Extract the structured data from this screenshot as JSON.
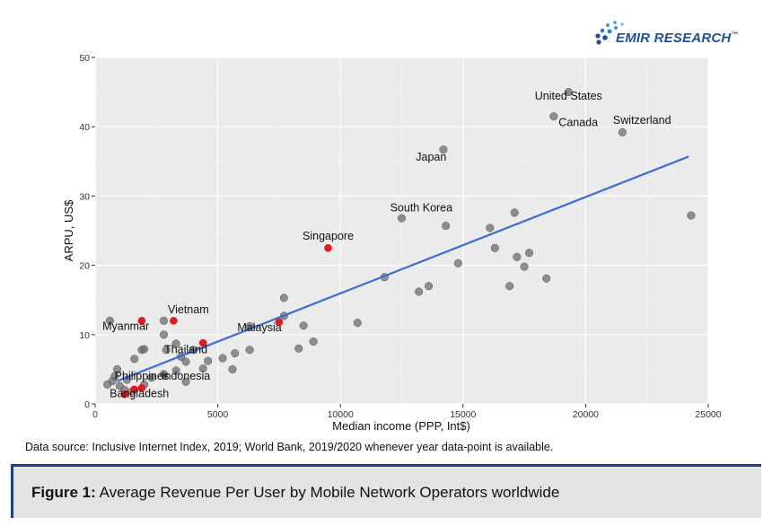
{
  "brand": {
    "name": "EMIR RESEARCH",
    "tm": "™",
    "accent": "#1f4e96",
    "icon": "dots-logo-icon"
  },
  "source_note": "Data source: Inclusive Internet Index, 2019; World Bank, 2019/2020 whenever year data-point is available.",
  "caption": {
    "prefix": "Figure 1:",
    "text": " Average Revenue Per User by Mobile Network Operators worldwide"
  },
  "colors": {
    "panel": "#ebebeb",
    "grid": "#ffffff",
    "point": "#6e6e6e",
    "highlight": "#e41a1c",
    "fit": "#3a6bd6",
    "caption_rule": "#1f3f8c"
  },
  "chart_data": {
    "type": "scatter",
    "title": "",
    "xlabel": "Median income (PPP, Int$)",
    "ylabel": "ARPU, US$",
    "xlim": [
      0,
      25000
    ],
    "ylim": [
      0,
      50
    ],
    "xticks": [
      0,
      5000,
      10000,
      15000,
      20000,
      25000
    ],
    "xtick_labels": [
      "0",
      "5000",
      "10000",
      "15000",
      "20000",
      "25000"
    ],
    "yticks": [
      0,
      10,
      20,
      30,
      40,
      50
    ],
    "ytick_labels": [
      "0",
      "10",
      "20",
      "30",
      "40",
      "50"
    ],
    "grid": true,
    "legend": "none",
    "trend_line": {
      "from": [
        900,
        3.3
      ],
      "to": [
        24200,
        35.7
      ]
    },
    "series": [
      {
        "points": [
          [
            19300,
            45
          ],
          [
            18700,
            41.5
          ],
          [
            21500,
            39.2
          ],
          [
            14200,
            36.7
          ],
          [
            12500,
            26.8
          ],
          [
            14300,
            25.7
          ],
          [
            17100,
            27.6
          ],
          [
            16100,
            25.4
          ],
          [
            24300,
            27.2
          ],
          [
            16300,
            22.5
          ],
          [
            17700,
            21.8
          ],
          [
            17200,
            21.2
          ],
          [
            17500,
            19.8
          ],
          [
            14800,
            20.3
          ],
          [
            11800,
            18.3
          ],
          [
            13200,
            16.2
          ],
          [
            13600,
            17.0
          ],
          [
            16900,
            17.0
          ],
          [
            18400,
            18.1
          ],
          [
            7700,
            15.3
          ],
          [
            7700,
            12.7
          ],
          [
            10700,
            11.7
          ],
          [
            8500,
            11.3
          ],
          [
            6300,
            11.2
          ],
          [
            8900,
            9.0
          ],
          [
            8300,
            8.0
          ],
          [
            6300,
            7.8
          ],
          [
            5700,
            7.3
          ],
          [
            5200,
            6.6
          ],
          [
            5600,
            5.0
          ],
          [
            4400,
            5.1
          ],
          [
            3300,
            8.7
          ],
          [
            3500,
            6.8
          ],
          [
            3700,
            6.1
          ],
          [
            2900,
            7.8
          ],
          [
            4000,
            7.8
          ],
          [
            4600,
            6.2
          ],
          [
            2800,
            12.0
          ],
          [
            2800,
            10.0
          ],
          [
            600,
            12.0
          ],
          [
            1900,
            7.8
          ],
          [
            2000,
            7.9
          ],
          [
            1600,
            6.5
          ],
          [
            3300,
            4.8
          ],
          [
            2800,
            4.3
          ],
          [
            3700,
            3.2
          ],
          [
            2300,
            3.8
          ],
          [
            2000,
            2.8
          ],
          [
            1300,
            3.5
          ],
          [
            900,
            5.0
          ],
          [
            800,
            4.0
          ],
          [
            1000,
            2.6
          ],
          [
            1200,
            2.0
          ],
          [
            700,
            3.3
          ],
          [
            500,
            2.8
          ],
          [
            1500,
            1.8
          ]
        ],
        "color": "#6e6e6e"
      },
      {
        "points": [
          [
            1900,
            12.0
          ],
          [
            3200,
            12.0
          ],
          [
            9500,
            22.5
          ],
          [
            7500,
            11.8
          ],
          [
            4400,
            8.8
          ],
          [
            1900,
            2.3
          ],
          [
            1600,
            2.1
          ],
          [
            1200,
            1.4
          ]
        ],
        "color": "#e41a1c"
      }
    ],
    "annotations": [
      {
        "text": "United States",
        "x": 19300,
        "y": 43.9
      },
      {
        "text": "Canada",
        "x": 19700,
        "y": 40.1
      },
      {
        "text": "Switzerland",
        "x": 22300,
        "y": 40.4
      },
      {
        "text": "Japan",
        "x": 13700,
        "y": 35.1
      },
      {
        "text": "South Korea",
        "x": 13300,
        "y": 27.8
      },
      {
        "text": "Singapore",
        "x": 9500,
        "y": 23.7
      },
      {
        "text": "Vietnam",
        "x": 3800,
        "y": 13.1
      },
      {
        "text": "Myanmar",
        "x": 1250,
        "y": 10.7
      },
      {
        "text": "Malaysia",
        "x": 6700,
        "y": 10.5
      },
      {
        "text": "Thailand",
        "x": 3700,
        "y": 7.3
      },
      {
        "text": "Philippines",
        "x": 1900,
        "y": 3.5
      },
      {
        "text": "Indonesia",
        "x": 3700,
        "y": 3.5
      },
      {
        "text": "Bangladesh",
        "x": 1800,
        "y": 1.0
      }
    ]
  }
}
